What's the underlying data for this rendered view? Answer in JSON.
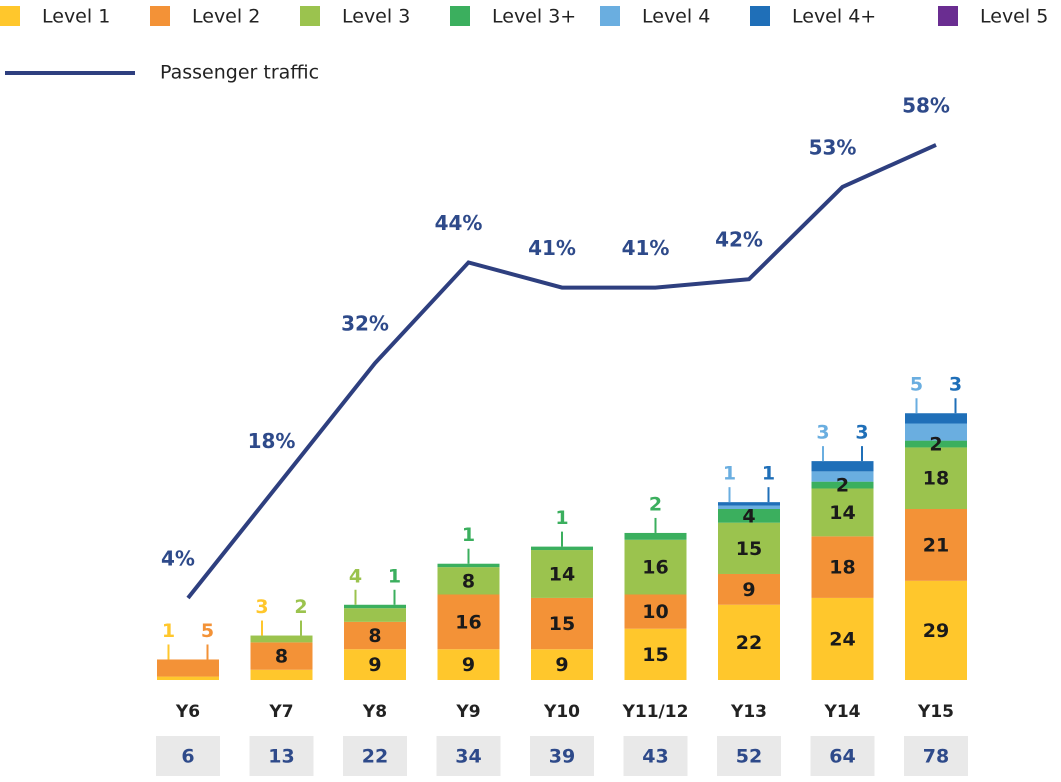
{
  "chart_data": {
    "type": "bar-line",
    "categories": [
      "Y6",
      "Y7",
      "Y8",
      "Y9",
      "Y10",
      "Y11/12",
      "Y13",
      "Y14",
      "Y15"
    ],
    "series": [
      {
        "name": "Level 1",
        "color": "#FFC72C",
        "values": [
          1,
          3,
          9,
          9,
          9,
          15,
          22,
          24,
          29
        ]
      },
      {
        "name": "Level 2",
        "color": "#F39237",
        "values": [
          5,
          8,
          8,
          16,
          15,
          10,
          9,
          18,
          21
        ]
      },
      {
        "name": "Level 3",
        "color": "#9BC34E",
        "values": [
          null,
          2,
          4,
          8,
          14,
          16,
          15,
          14,
          18
        ]
      },
      {
        "name": "Level 3+",
        "color": "#3BAF5E",
        "values": [
          null,
          null,
          1,
          1,
          1,
          2,
          4,
          2,
          2
        ]
      },
      {
        "name": "Level 4",
        "color": "#6AAEE0",
        "values": [
          null,
          null,
          null,
          null,
          null,
          null,
          1,
          3,
          5
        ]
      },
      {
        "name": "Level 4+",
        "color": "#1F6FB8",
        "values": [
          null,
          null,
          null,
          null,
          null,
          null,
          1,
          3,
          3
        ]
      },
      {
        "name": "Level 5",
        "color": "#6A2D91",
        "values": [
          null,
          null,
          null,
          null,
          null,
          null,
          null,
          null,
          null
        ]
      }
    ],
    "line": {
      "name": "Passenger traffic",
      "color": "#2E3F7F",
      "values": [
        4,
        18,
        32,
        44,
        41,
        41,
        42,
        53,
        58
      ],
      "value_labels": [
        "4%",
        "18%",
        "32%",
        "44%",
        "41%",
        "41%",
        "42%",
        "53%",
        "58%"
      ]
    },
    "totals": [
      6,
      13,
      22,
      34,
      39,
      43,
      52,
      64,
      78
    ]
  }
}
